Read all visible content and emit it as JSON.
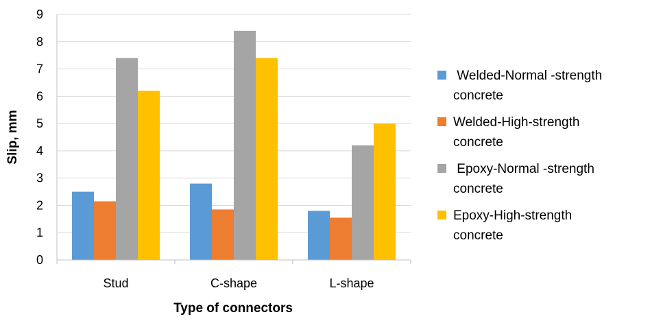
{
  "chart_data": {
    "type": "bar",
    "title": "",
    "xlabel": "Type of connectors",
    "ylabel": "Slip, mm",
    "categories": [
      "Stud",
      "C-shape",
      "L-shape"
    ],
    "ylim": [
      0,
      9
    ],
    "yticks": [
      "0",
      "1",
      "2",
      "3",
      "4",
      "5",
      "6",
      "7",
      "8",
      "9"
    ],
    "grid": true,
    "legend_position": "right",
    "series": [
      {
        "name": "Welded-Normal -strength concrete",
        "color": "#5b9bd5",
        "values": [
          2.5,
          2.8,
          1.8
        ]
      },
      {
        "name": "Welded-High-strength concrete",
        "color": "#ed7d31",
        "values": [
          2.15,
          1.85,
          1.55
        ]
      },
      {
        "name": "Epoxy-Normal -strength concrete",
        "color": "#a5a5a5",
        "values": [
          7.4,
          8.4,
          4.2
        ]
      },
      {
        "name": "Epoxy-High-strength concrete",
        "color": "#ffc000",
        "values": [
          6.2,
          7.4,
          5.0
        ]
      }
    ]
  },
  "legend": {
    "items": [
      {
        "label": " Welded-Normal -strength\nconcrete",
        "color": "#5b9bd5"
      },
      {
        "label": "Welded-High-strength\nconcrete",
        "color": "#ed7d31"
      },
      {
        "label": " Epoxy-Normal -strength\nconcrete",
        "color": "#a5a5a5"
      },
      {
        "label": "Epoxy-High-strength\nconcrete",
        "color": "#ffc000"
      }
    ]
  }
}
